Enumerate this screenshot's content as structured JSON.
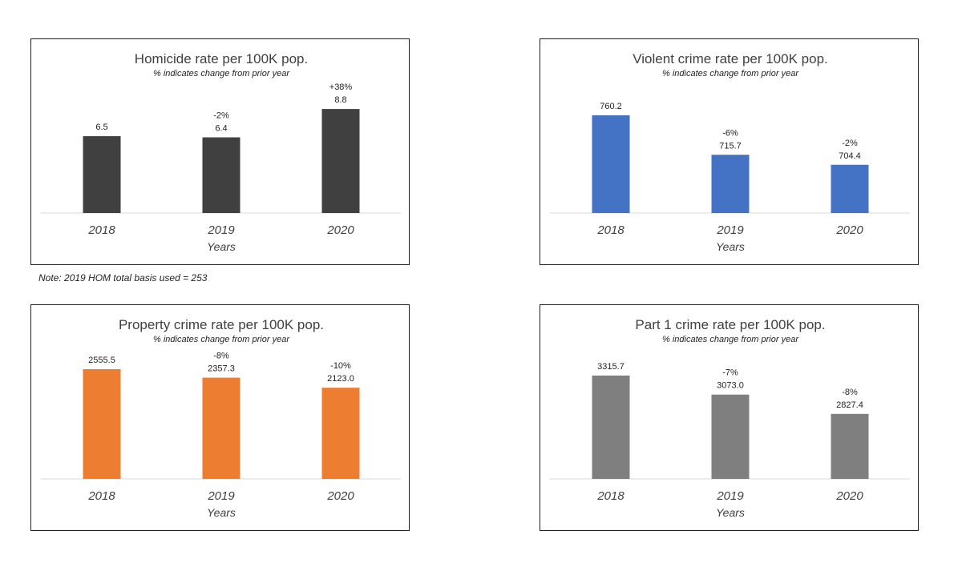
{
  "note": "Note: 2019 HOM total basis used = 253",
  "chart_data": [
    {
      "type": "bar",
      "title": "Homicide rate per 100K pop.",
      "subtitle": "% indicates change from prior year",
      "xlabel": "Years",
      "categories": [
        "2018",
        "2019",
        "2020"
      ],
      "values": [
        6.5,
        6.4,
        8.8
      ],
      "value_labels": [
        "6.5",
        "6.4",
        "8.8"
      ],
      "changes": [
        "",
        "-2%",
        "+38%"
      ],
      "color": "#404040",
      "ylim": [
        0,
        10.5
      ]
    },
    {
      "type": "bar",
      "title": "Violent crime rate per 100K pop.",
      "subtitle": "% indicates change from prior year",
      "xlabel": "Years",
      "categories": [
        "2018",
        "2019",
        "2020"
      ],
      "values": [
        760.2,
        715.7,
        704.4
      ],
      "value_labels": [
        "760.2",
        "715.7",
        "704.4"
      ],
      "changes": [
        "",
        "-6%",
        "-2%"
      ],
      "color": "#4472c4",
      "ylim": [
        650,
        790
      ]
    },
    {
      "type": "bar",
      "title": "Property crime rate per 100K pop.",
      "subtitle": "% indicates change from prior year",
      "xlabel": "Years",
      "categories": [
        "2018",
        "2019",
        "2020"
      ],
      "values": [
        2555.5,
        2357.3,
        2123.0
      ],
      "value_labels": [
        "2555.5",
        "2357.3",
        "2123.0"
      ],
      "changes": [
        "",
        "-8%",
        "-10%"
      ],
      "color": "#ed7d31",
      "ylim": [
        0,
        2890
      ]
    },
    {
      "type": "bar",
      "title": "Part 1 crime rate per 100K pop.",
      "subtitle": "% indicates change from prior year",
      "xlabel": "Years",
      "categories": [
        "2018",
        "2019",
        "2020"
      ],
      "values": [
        3315.7,
        3073.0,
        2827.4
      ],
      "value_labels": [
        "3315.7",
        "3073.0",
        "2827.4"
      ],
      "changes": [
        "",
        "-7%",
        "-8%"
      ],
      "color": "#7f7f7f",
      "ylim": [
        2000,
        3580
      ]
    }
  ]
}
